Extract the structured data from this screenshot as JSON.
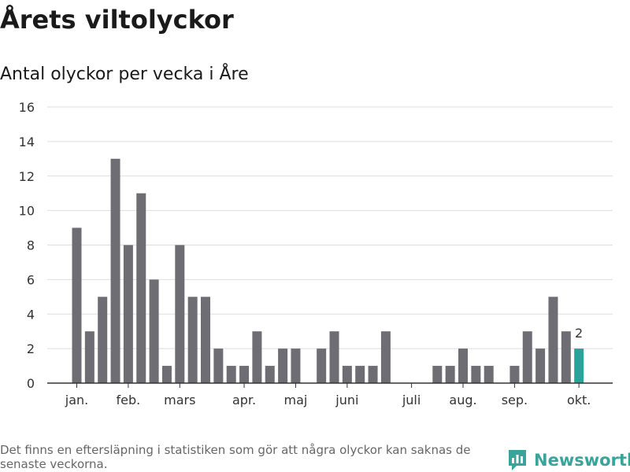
{
  "title": "Årets viltolyckor",
  "subtitle": "Antal olyckor per vecka i Åre",
  "footnote": "Det finns en eftersläpning i statistiken som gör att några olyckor kan saknas de senaste veckorna.",
  "brand": {
    "name": "Newsworthy",
    "logo_icon": "newsworthy-logo-icon",
    "color": "#3aa39a"
  },
  "chart_data": {
    "type": "bar",
    "title": "Antal olyckor per vecka i Åre",
    "ylim": [
      0,
      16
    ],
    "yticks": [
      0,
      2,
      4,
      6,
      8,
      10,
      12,
      14,
      16
    ],
    "grid": true,
    "weeks": [
      1,
      2,
      3,
      4,
      5,
      6,
      7,
      8,
      9,
      10,
      11,
      12,
      13,
      14,
      15,
      16,
      17,
      18,
      19,
      20,
      21,
      22,
      23,
      24,
      25,
      26,
      27,
      28,
      29,
      30,
      31,
      32,
      33,
      34,
      35,
      36,
      37,
      38,
      39,
      40
    ],
    "values": [
      9,
      3,
      5,
      13,
      8,
      11,
      6,
      1,
      8,
      5,
      5,
      2,
      1,
      1,
      3,
      1,
      2,
      2,
      0,
      2,
      3,
      1,
      1,
      1,
      3,
      0,
      0,
      0,
      1,
      1,
      2,
      1,
      1,
      0,
      1,
      3,
      2,
      5,
      3,
      2
    ],
    "month_labels": [
      {
        "label": "jan.",
        "week": 1
      },
      {
        "label": "feb.",
        "week": 5
      },
      {
        "label": "mars",
        "week": 9
      },
      {
        "label": "apr.",
        "week": 14
      },
      {
        "label": "maj",
        "week": 18
      },
      {
        "label": "juni",
        "week": 22
      },
      {
        "label": "juli",
        "week": 27
      },
      {
        "label": "aug.",
        "week": 31
      },
      {
        "label": "sep.",
        "week": 35
      },
      {
        "label": "okt.",
        "week": 40
      }
    ],
    "highlight": {
      "week": 40,
      "label": "2"
    },
    "colors": {
      "bar": "#6e6d73",
      "highlight": "#2ba39a",
      "grid": "#dddddd",
      "axis": "#333333"
    }
  }
}
